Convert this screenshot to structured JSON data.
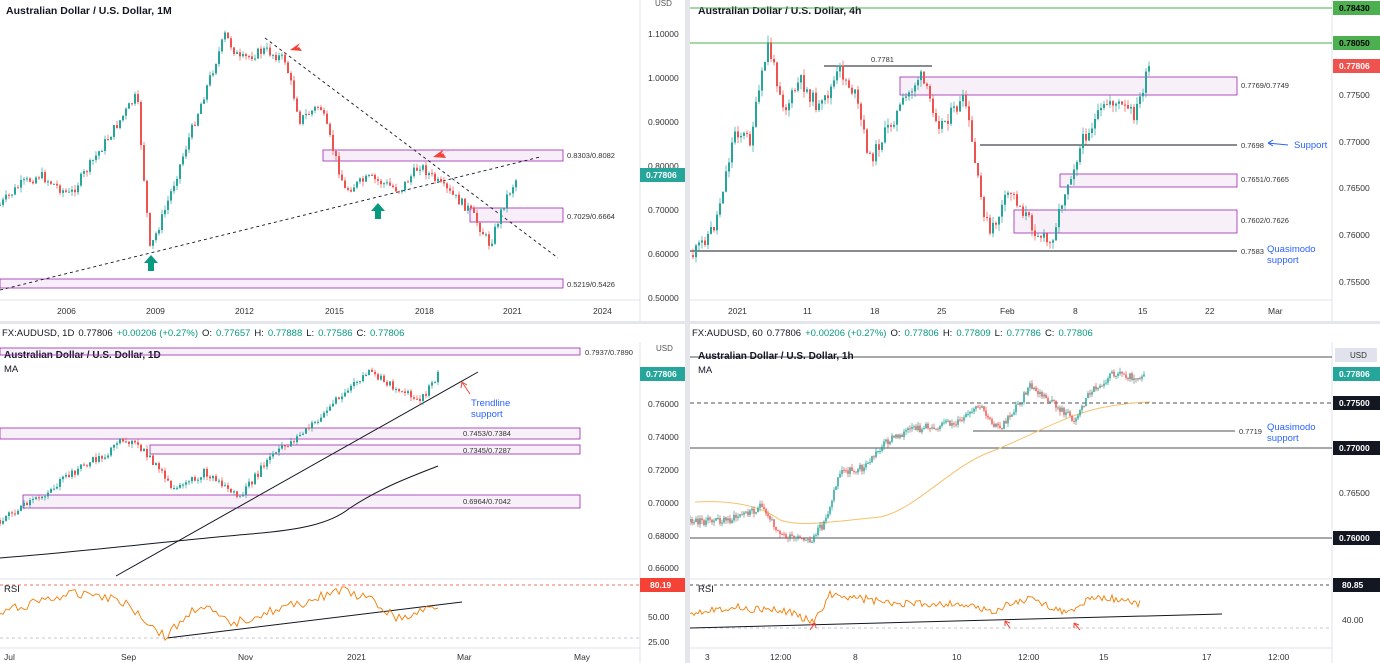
{
  "colors": {
    "up": "#26a69a",
    "down": "#ef5350",
    "zone": "#9c27b0",
    "trend": "#131722",
    "green_line": "#4caf50",
    "ma200": "#131722",
    "ma_orange": "#f5a623",
    "rsi": "#f57c00",
    "accent_blue": "#2962ff",
    "price_tag": "#26a69a"
  },
  "panes": [
    {
      "id": "monthly",
      "title": "Australian Dollar / U.S. Dollar, 1M",
      "currency": "USD",
      "price_tag": "0.77806",
      "y_ticks": [
        "1.10000",
        "1.00000",
        "0.90000",
        "0.80000",
        "0.70000",
        "0.60000",
        "0.50000"
      ],
      "x_ticks": [
        "2006",
        "2009",
        "2012",
        "2015",
        "2018",
        "2021",
        "2024"
      ],
      "zones": [
        "0.8303/0.8082",
        "0.7029/0.6664",
        "0.5219/0.5426"
      ]
    },
    {
      "id": "h4",
      "title": "Australian Dollar / U.S. Dollar, 4h",
      "y_ticks": [
        "0.77500",
        "0.77000",
        "0.76500",
        "0.76000",
        "0.75500"
      ],
      "tags": {
        "top": "0.78430",
        "second": "0.78050",
        "price": "0.77806"
      },
      "x_ticks": [
        "2021",
        "11",
        "18",
        "25",
        "Feb",
        "8",
        "15",
        "22",
        "Mar"
      ],
      "levels": [
        "0.7781",
        "0.7698",
        "0.7583"
      ],
      "zones": [
        "0.7769/0.7749",
        "0.7651/0.7665",
        "0.7602/0.7626"
      ],
      "annotations": {
        "support": "Support",
        "quasimodo": "Quasimodo\nsupport"
      }
    },
    {
      "id": "daily",
      "title": "Australian Dollar / U.S. Dollar, 1D",
      "ohlc": {
        "symbol": "FX:AUDUSD, 1D",
        "last": "0.77806",
        "change": "+0.00206 (+0.27%)",
        "o": "0.77657",
        "h": "0.77888",
        "l": "0.77586",
        "c": "0.77806"
      },
      "ma_label": "MA",
      "currency": "USD",
      "price_tag": "0.77806",
      "y_ticks": [
        "0.76000",
        "0.74000",
        "0.72000",
        "0.70000",
        "0.68000",
        "0.66000"
      ],
      "rsi_label": "RSI",
      "rsi_ticks": [
        "50.00",
        "25.00"
      ],
      "rsi_tag": "80.19",
      "x_ticks": [
        "Jul",
        "Sep",
        "Nov",
        "2021",
        "Mar",
        "May"
      ],
      "zones": [
        "0.7937/0.7890",
        "0.7453/0.7384",
        "0.7345/0.7287",
        "0.6964/0.7042"
      ],
      "annotations": {
        "trendline": "Trendline\nsupport"
      }
    },
    {
      "id": "h1",
      "title": "Australian Dollar / U.S. Dollar, 1h",
      "ohlc": {
        "symbol": "FX:AUDUSD, 60",
        "last": "0.77806",
        "change": "+0.00206 (+0.27%)",
        "o": "0.77806",
        "h": "0.77809",
        "l": "0.77786",
        "c": "0.77806"
      },
      "ma_label": "MA",
      "currency": "USD",
      "tags": {
        "price": "0.77806",
        "l1": "0.77500",
        "l2": "0.77000",
        "l3": "0.76000"
      },
      "y_ticks": [
        "0.76500"
      ],
      "rsi_label": "RSI",
      "rsi_tag": "80.85",
      "rsi_ticks": [
        "40.00"
      ],
      "x_ticks": [
        "3",
        "12:00",
        "8",
        "10",
        "12:00",
        "15",
        "17",
        "12:00"
      ],
      "levels": [
        "0.7719"
      ],
      "annotations": {
        "quasimodo": "Quasimodo\nsupport"
      }
    }
  ]
}
